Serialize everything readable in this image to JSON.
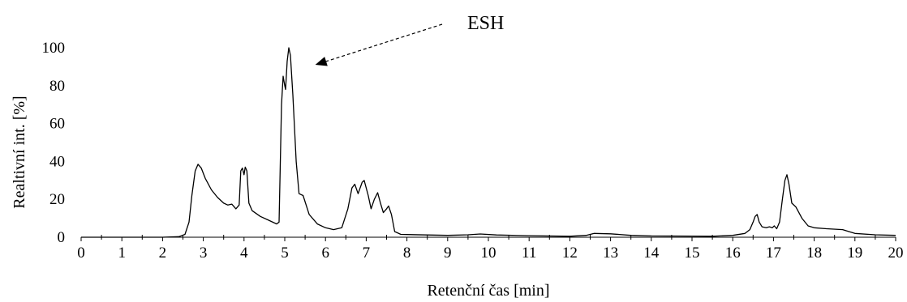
{
  "chart_data": {
    "type": "line",
    "title": "",
    "xlabel": "Retenční čas [min]",
    "ylabel": "Realtivní int. [%]",
    "xlim": [
      0,
      20
    ],
    "ylim": [
      0,
      100
    ],
    "x_ticks": [
      0,
      1,
      2,
      3,
      4,
      5,
      6,
      7,
      8,
      9,
      10,
      11,
      12,
      13,
      14,
      15,
      16,
      17,
      18,
      19,
      20
    ],
    "y_ticks": [
      0,
      20,
      40,
      60,
      80,
      100
    ],
    "grid": false,
    "legend": "none",
    "line_color": "#000000",
    "annotation": {
      "text": "ESH",
      "points_to": [
        5.75,
        91
      ]
    },
    "series": [
      {
        "points": [
          [
            0,
            0
          ],
          [
            1,
            0
          ],
          [
            2,
            0
          ],
          [
            2.4,
            0.3
          ],
          [
            2.55,
            1.5
          ],
          [
            2.65,
            8
          ],
          [
            2.72,
            22
          ],
          [
            2.8,
            35
          ],
          [
            2.87,
            38.5
          ],
          [
            2.95,
            36.5
          ],
          [
            3.05,
            31
          ],
          [
            3.2,
            25
          ],
          [
            3.35,
            21
          ],
          [
            3.5,
            18
          ],
          [
            3.6,
            17
          ],
          [
            3.7,
            17.5
          ],
          [
            3.8,
            15
          ],
          [
            3.88,
            17
          ],
          [
            3.92,
            35
          ],
          [
            3.96,
            36.5
          ],
          [
            4.0,
            33
          ],
          [
            4.03,
            37
          ],
          [
            4.07,
            35
          ],
          [
            4.12,
            18
          ],
          [
            4.2,
            14
          ],
          [
            4.4,
            11
          ],
          [
            4.6,
            9
          ],
          [
            4.8,
            7
          ],
          [
            4.86,
            8
          ],
          [
            4.92,
            70
          ],
          [
            4.96,
            85
          ],
          [
            5.0,
            80
          ],
          [
            5.02,
            78
          ],
          [
            5.06,
            93
          ],
          [
            5.1,
            100
          ],
          [
            5.14,
            96
          ],
          [
            5.2,
            75
          ],
          [
            5.28,
            40
          ],
          [
            5.35,
            23
          ],
          [
            5.45,
            22
          ],
          [
            5.6,
            12
          ],
          [
            5.8,
            7
          ],
          [
            6.0,
            5
          ],
          [
            6.2,
            4
          ],
          [
            6.4,
            5
          ],
          [
            6.55,
            15
          ],
          [
            6.65,
            26
          ],
          [
            6.72,
            28
          ],
          [
            6.8,
            23
          ],
          [
            6.9,
            29
          ],
          [
            6.95,
            30
          ],
          [
            7.05,
            22
          ],
          [
            7.12,
            15
          ],
          [
            7.2,
            20
          ],
          [
            7.28,
            23.5
          ],
          [
            7.35,
            18
          ],
          [
            7.42,
            13
          ],
          [
            7.5,
            15
          ],
          [
            7.55,
            16.5
          ],
          [
            7.62,
            12
          ],
          [
            7.7,
            3
          ],
          [
            7.85,
            1.5
          ],
          [
            8.5,
            1.2
          ],
          [
            9,
            1
          ],
          [
            9.5,
            1.3
          ],
          [
            9.8,
            1.7
          ],
          [
            10.2,
            1.2
          ],
          [
            11,
            0.8
          ],
          [
            12,
            0.5
          ],
          [
            12.4,
            1
          ],
          [
            12.6,
            2
          ],
          [
            13,
            1.8
          ],
          [
            13.5,
            1
          ],
          [
            14,
            0.7
          ],
          [
            15,
            0.6
          ],
          [
            15.5,
            0.5
          ],
          [
            16,
            1
          ],
          [
            16.3,
            2
          ],
          [
            16.42,
            4
          ],
          [
            16.5,
            8
          ],
          [
            16.55,
            11
          ],
          [
            16.6,
            12
          ],
          [
            16.65,
            8
          ],
          [
            16.72,
            5.5
          ],
          [
            16.82,
            5
          ],
          [
            16.9,
            5.5
          ],
          [
            16.97,
            5
          ],
          [
            17.02,
            6
          ],
          [
            17.08,
            4.5
          ],
          [
            17.15,
            8
          ],
          [
            17.22,
            20
          ],
          [
            17.28,
            30
          ],
          [
            17.33,
            33
          ],
          [
            17.38,
            28
          ],
          [
            17.45,
            18
          ],
          [
            17.55,
            16
          ],
          [
            17.7,
            10
          ],
          [
            17.85,
            6
          ],
          [
            18,
            5
          ],
          [
            18.3,
            4.5
          ],
          [
            18.7,
            4
          ],
          [
            18.85,
            3
          ],
          [
            19,
            2
          ],
          [
            19.5,
            1.3
          ],
          [
            20,
            1
          ]
        ]
      }
    ]
  }
}
